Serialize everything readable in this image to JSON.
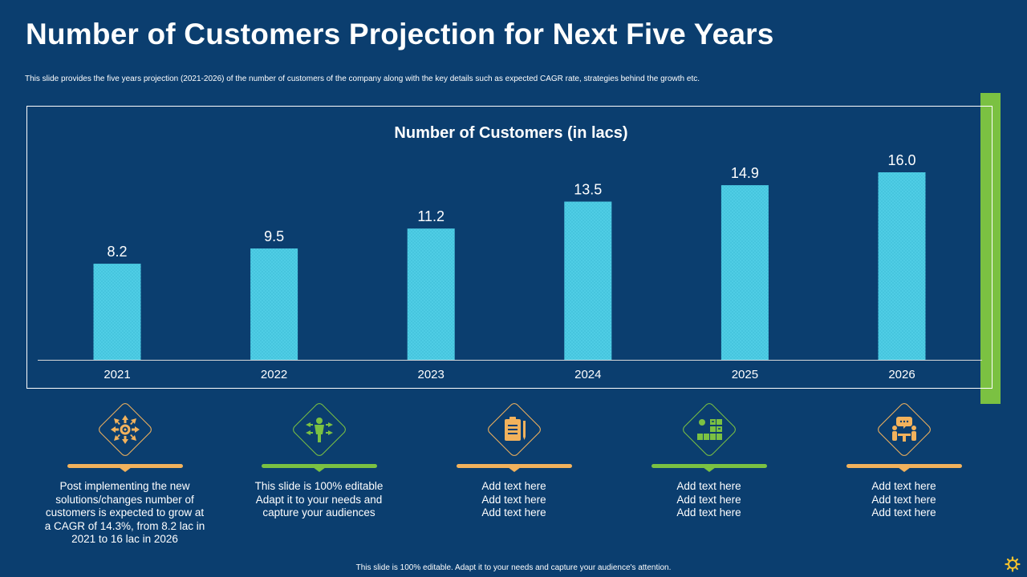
{
  "page": {
    "title": "Number of Customers Projection for Next Five Years",
    "subtitle": "This slide provides the five years projection (2021-2026) of the number of customers of the company along with the key details such as expected CAGR rate, strategies behind the growth etc.",
    "footer": "This slide is 100% editable.  Adapt it to your needs and capture your audience's attention."
  },
  "colors": {
    "background": "#0b3e6f",
    "bar": "#4fcde5",
    "accent_green": "#7bc142",
    "accent_orange": "#f2b25c"
  },
  "chart_data": {
    "type": "bar",
    "title": "Number of Customers (in lacs)",
    "categories": [
      "2021",
      "2022",
      "2023",
      "2024",
      "2025",
      "2026"
    ],
    "values": [
      8.2,
      9.5,
      11.2,
      13.5,
      14.9,
      16.0
    ],
    "value_labels": [
      "8.2",
      "9.5",
      "11.2",
      "13.5",
      "14.9",
      "16.0"
    ],
    "xlabel": "",
    "ylabel": "",
    "ylim": [
      0,
      16.0
    ],
    "grid": false
  },
  "columns": [
    {
      "icon": "arrows-converging-gear-icon",
      "color": "#f2b25c",
      "lines": [
        "Post implementing the new",
        "solutions/changes number of",
        "customers is expected to grow at",
        "a CAGR of 14.3%, from 8.2 lac in",
        "2021 to 16 lac in 2026"
      ]
    },
    {
      "icon": "person-arrows-icon",
      "color": "#7bc142",
      "lines": [
        "This slide is 100% editable",
        "Adapt it to your needs and",
        "capture your audiences"
      ]
    },
    {
      "icon": "clipboard-pen-icon",
      "color": "#f2b25c",
      "lines": [
        "Add text here",
        "Add text here",
        "Add text here"
      ]
    },
    {
      "icon": "strategy-board-icon",
      "color": "#7bc142",
      "lines": [
        "Add text here",
        "Add text here",
        "Add text here"
      ]
    },
    {
      "icon": "team-discussion-icon",
      "color": "#f2b25c",
      "lines": [
        "Add text here",
        "Add text here",
        "Add text here"
      ]
    }
  ]
}
